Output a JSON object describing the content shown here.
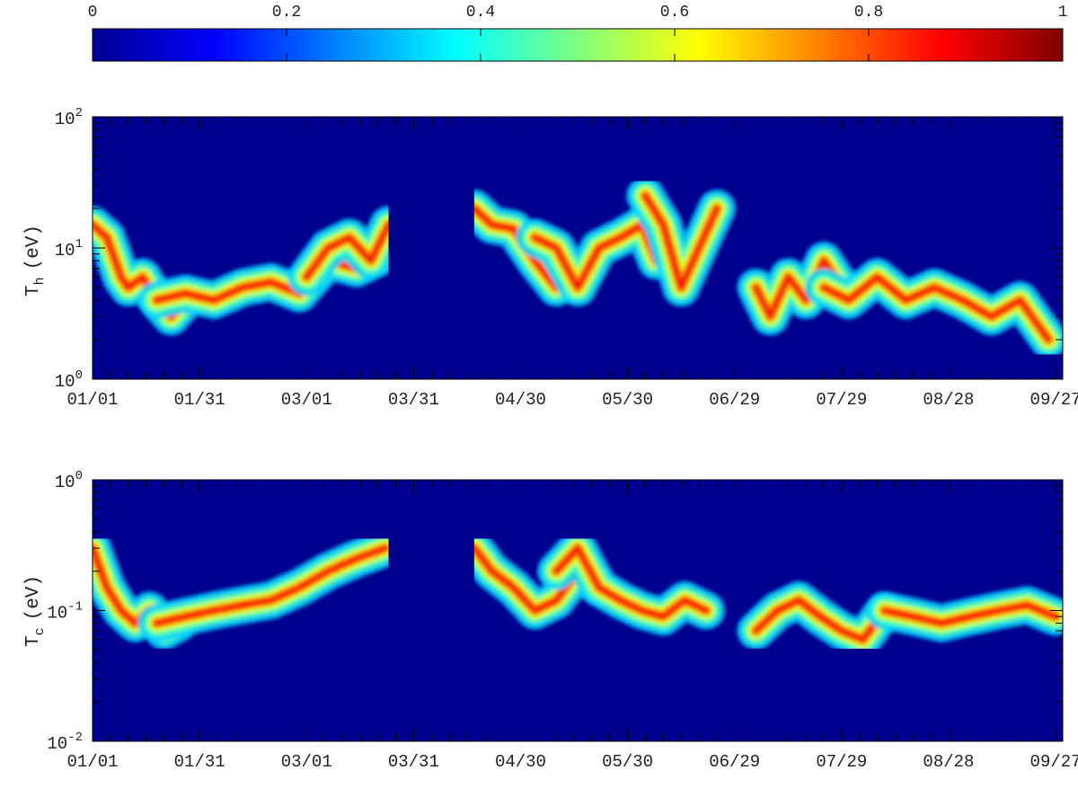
{
  "colorbar": {
    "tick_labels": [
      "0",
      "0.2",
      "0.4",
      "0.6",
      "0.8",
      "1"
    ],
    "range": [
      0,
      1
    ],
    "colormap": "jet"
  },
  "chart_data": [
    {
      "type": "heatmap",
      "title": "",
      "ylabel": "T",
      "ylabel_sub": "h",
      "ylabel_unit": "(eV)",
      "yscale": "log",
      "ylim": [
        1,
        100
      ],
      "y_ticks": [
        {
          "base": "10",
          "exp": "0"
        },
        {
          "base": "10",
          "exp": "1"
        },
        {
          "base": "10",
          "exp": "2"
        }
      ],
      "x_tick_labels": [
        "01/01",
        "01/31",
        "03/01",
        "03/31",
        "04/30",
        "05/30",
        "06/29",
        "07/29",
        "08/28",
        "09/27"
      ],
      "x_days": [
        0,
        30,
        60,
        90,
        120,
        150,
        180,
        210,
        240,
        270
      ],
      "xlim_days": [
        0,
        272
      ],
      "data_gap_days": [
        83,
        107
      ],
      "background_value": 0,
      "ridges": [
        {
          "days": [
            0,
            4,
            8,
            10,
            14,
            18,
            22,
            26
          ],
          "values": [
            15,
            12,
            6,
            5,
            6,
            4,
            3,
            4
          ]
        },
        {
          "days": [
            18,
            26,
            34,
            42,
            50,
            58,
            66,
            74,
            82
          ],
          "values": [
            4,
            4.5,
            4,
            5,
            5.5,
            4.5,
            8,
            7,
            9
          ]
        },
        {
          "days": [
            60,
            66,
            72,
            78,
            83
          ],
          "values": [
            6,
            10,
            12,
            8,
            15
          ]
        },
        {
          "days": [
            107,
            112,
            118,
            124,
            130,
            136
          ],
          "values": [
            20,
            15,
            14,
            8,
            5,
            6
          ]
        },
        {
          "days": [
            124,
            130,
            136,
            142,
            148,
            154,
            158
          ],
          "values": [
            12,
            10,
            5,
            10,
            12,
            15,
            8
          ]
        },
        {
          "days": [
            155,
            160,
            165,
            170,
            175
          ],
          "values": [
            25,
            15,
            5,
            10,
            20
          ]
        },
        {
          "days": [
            186,
            190,
            195,
            200,
            205,
            210
          ],
          "values": [
            5,
            3,
            6,
            4,
            8,
            5
          ]
        },
        {
          "days": [
            205,
            212,
            220,
            228,
            236,
            244,
            252,
            260,
            268
          ],
          "values": [
            5,
            4,
            6,
            4,
            5,
            4,
            3,
            4,
            2
          ]
        }
      ]
    },
    {
      "type": "heatmap",
      "title": "",
      "ylabel": "T",
      "ylabel_sub": "c",
      "ylabel_unit": "(eV)",
      "yscale": "log",
      "ylim": [
        0.01,
        1
      ],
      "y_ticks": [
        {
          "base": "10",
          "exp": "-2"
        },
        {
          "base": "10",
          "exp": "-1"
        },
        {
          "base": "10",
          "exp": "0"
        }
      ],
      "x_tick_labels": [
        "01/01",
        "01/31",
        "03/01",
        "03/31",
        "04/30",
        "05/30",
        "06/29",
        "07/29",
        "08/28",
        "09/27"
      ],
      "x_days": [
        0,
        30,
        60,
        90,
        120,
        150,
        180,
        210,
        240,
        270
      ],
      "xlim_days": [
        0,
        272
      ],
      "data_gap_days": [
        83,
        107
      ],
      "background_value": 0,
      "ridges": [
        {
          "days": [
            0,
            4,
            8,
            12,
            16,
            20,
            24
          ],
          "values": [
            0.3,
            0.15,
            0.1,
            0.08,
            0.1,
            0.07,
            0.08
          ]
        },
        {
          "days": [
            18,
            26,
            34,
            42,
            50,
            58,
            66,
            74,
            82
          ],
          "values": [
            0.08,
            0.09,
            0.1,
            0.11,
            0.12,
            0.15,
            0.2,
            0.25,
            0.3
          ]
        },
        {
          "days": [
            107,
            112,
            118,
            124,
            130,
            136,
            142
          ],
          "values": [
            0.3,
            0.2,
            0.15,
            0.1,
            0.12,
            0.2,
            0.15
          ]
        },
        {
          "days": [
            130,
            136,
            142,
            148,
            154,
            160,
            166,
            172
          ],
          "values": [
            0.2,
            0.3,
            0.15,
            0.12,
            0.1,
            0.09,
            0.12,
            0.1
          ]
        },
        {
          "days": [
            186,
            192,
            198,
            204,
            210,
            216,
            222
          ],
          "values": [
            0.07,
            0.1,
            0.12,
            0.09,
            0.07,
            0.06,
            0.1
          ]
        },
        {
          "days": [
            222,
            230,
            238,
            246,
            254,
            262,
            270
          ],
          "values": [
            0.1,
            0.09,
            0.08,
            0.09,
            0.1,
            0.11,
            0.09
          ]
        }
      ]
    }
  ]
}
